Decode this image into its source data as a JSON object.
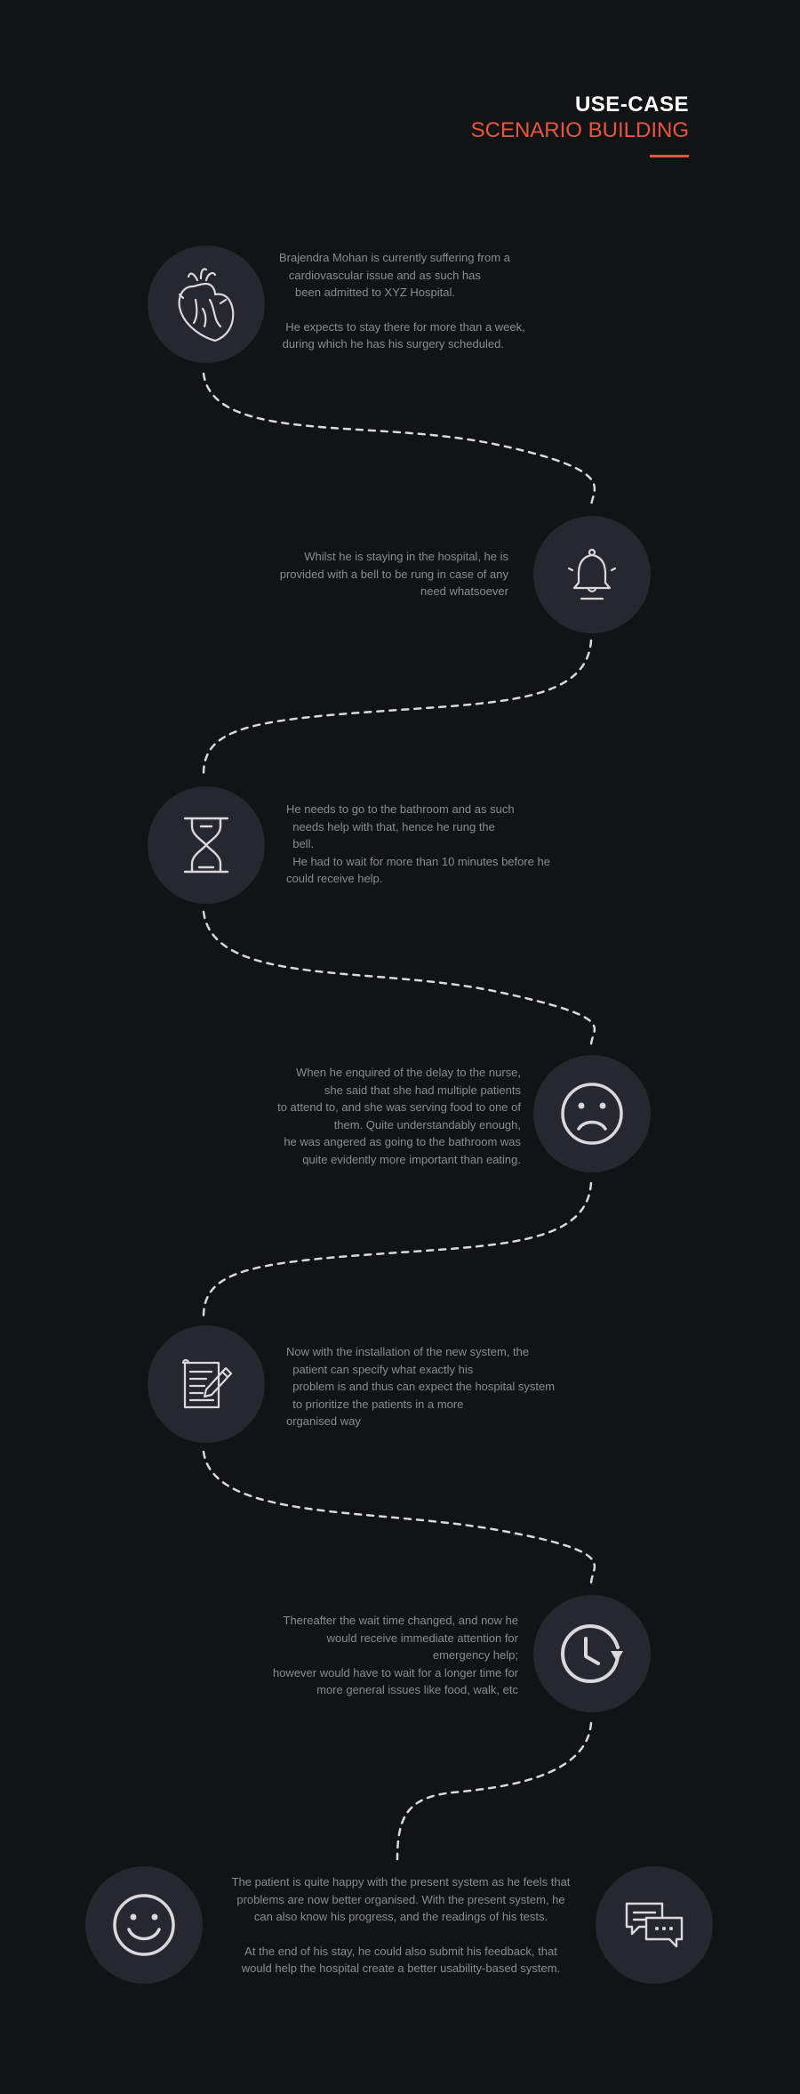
{
  "header": {
    "title": "USE-CASE",
    "subtitle": "SCENARIO BUILDING"
  },
  "colors": {
    "background": "#121315",
    "circle": "#27272f",
    "accent": "#e9553d",
    "text": "#8a8b91",
    "icon": "#d9d9dc"
  },
  "steps": [
    {
      "icon": "heart-icon",
      "paragraphs": [
        "Brajendra Mohan is currently suffering from a\n   cardiovascular issue and as such has\n     been admitted to XYZ Hospital.",
        "  He expects to stay there for more than a week,\n during which he has his surgery scheduled."
      ]
    },
    {
      "icon": "bell-icon",
      "paragraphs": [
        "Whilst he is staying in the hospital, he is\nprovided with a bell to be rung in case of any\nneed whatsoever"
      ]
    },
    {
      "icon": "hourglass-icon",
      "paragraphs": [
        "He needs to go to the bathroom and as such\n  needs help with that, hence he rung the\n  bell.\n  He had to wait for more than 10 minutes before he\ncould receive help."
      ]
    },
    {
      "icon": "sad-face-icon",
      "paragraphs": [
        "When he enquired of the delay to the nurse,\nshe said that she had multiple patients\nto attend to, and she was serving food to one of\nthem. Quite understandably enough,\nhe was angered as going to the bathroom was\nquite evidently more important than eating."
      ]
    },
    {
      "icon": "document-pen-icon",
      "paragraphs": [
        "Now with the installation of the new system, the\n  patient can specify what exactly his\n  problem is and thus can expect the hospital system\n  to prioritize the patients in a more\norganised way"
      ]
    },
    {
      "icon": "clock-refresh-icon",
      "paragraphs": [
        "Thereafter the wait time changed, and now he\nwould receive immediate attention for\nemergency help;\nhowever would have to wait for a longer time for\nmore general issues like food, walk, etc"
      ]
    },
    {
      "icon": "smiley-face-icon",
      "paragraphs": [
        "The patient is quite happy with the present system as he feels that\nproblems are now better organised. With the present system, he\ncan also know his progress, and the readings of his tests.",
        "At the end of his stay, he could also submit his feedback, that\nwould help the hospital create a better usability-based system."
      ]
    },
    {
      "icon": "chat-bubbles-icon"
    }
  ]
}
